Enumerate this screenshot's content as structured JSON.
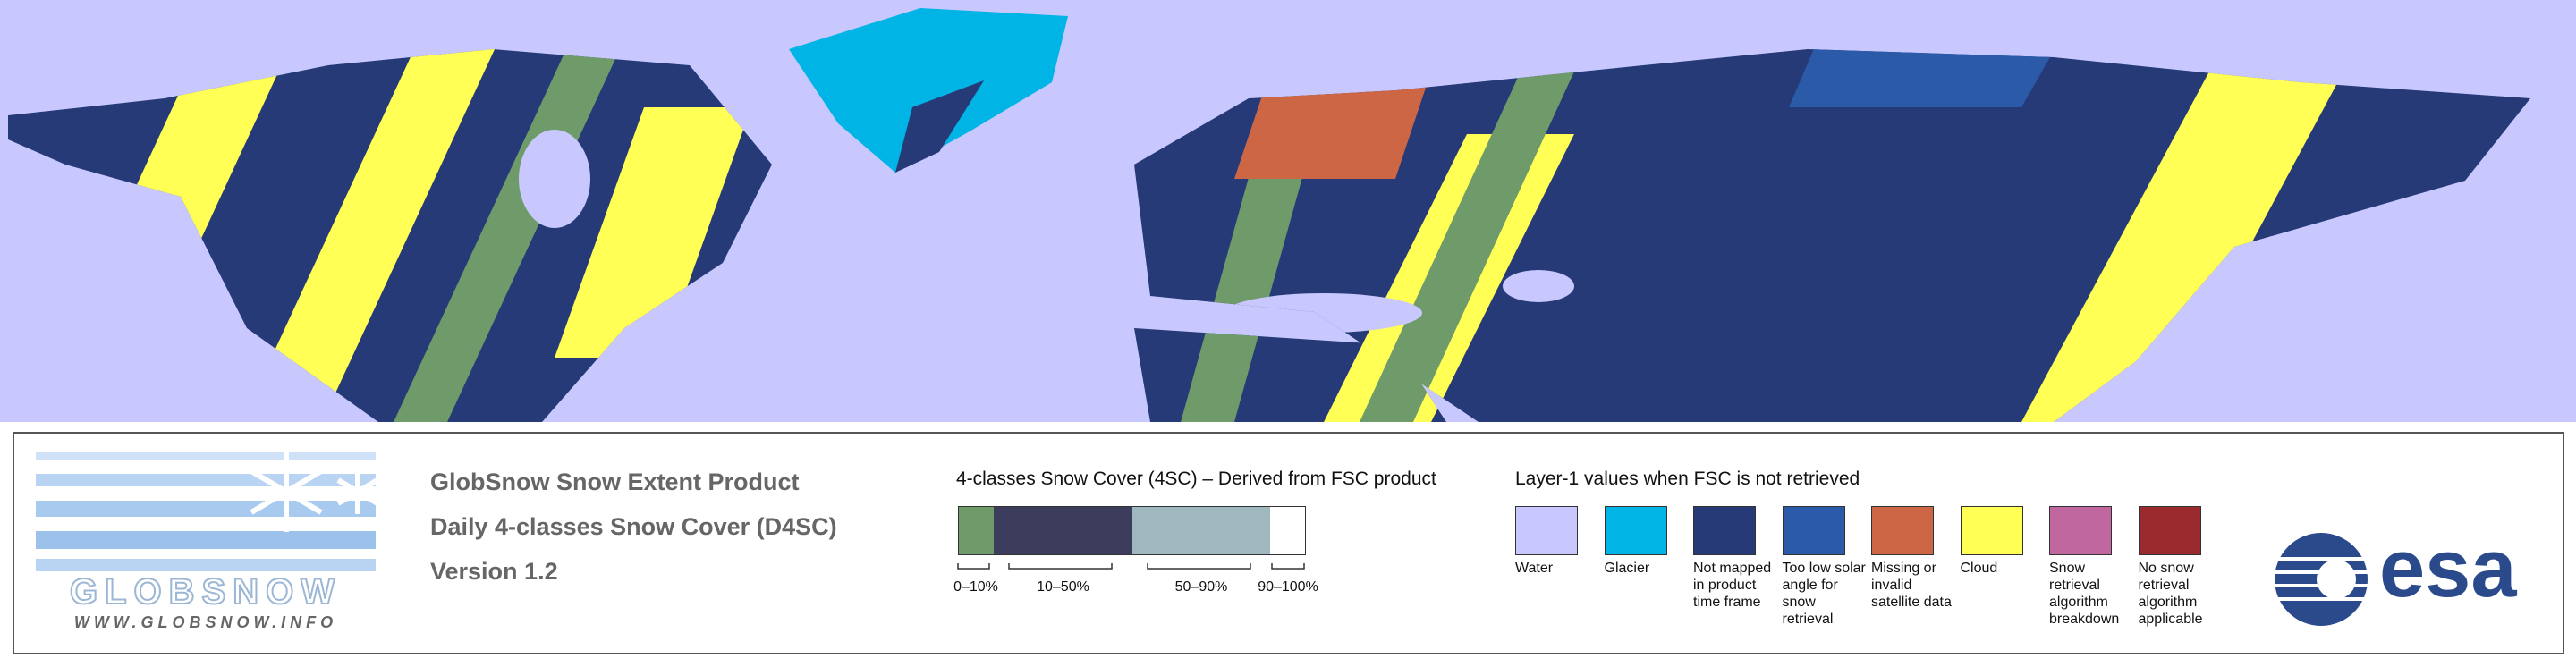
{
  "product": {
    "lines": [
      "GlobSnow Snow Extent Product",
      "Daily 4-classes Snow Cover (D4SC)",
      "Version 1.2"
    ]
  },
  "logo": {
    "name": "GLOBSNOW",
    "url": "WWW.GLOBSNOW.INFO"
  },
  "snow_cover": {
    "title": "4-classes Snow Cover (4SC) – Derived from FSC product",
    "classes": [
      {
        "label": "0–10%",
        "color": "#6f9a6a"
      },
      {
        "label": "10–50%",
        "color": "#3c3c5c"
      },
      {
        "label": "50–90%",
        "color": "#9fb8bd"
      },
      {
        "label": "90–100%",
        "color": "#ffffff"
      }
    ]
  },
  "layer1": {
    "title": "Layer-1 values when FSC is not retrieved",
    "classes": [
      {
        "label": "Water",
        "color": "#c8c8ff"
      },
      {
        "label": "Glacier",
        "color": "#00b4e6"
      },
      {
        "label": "Not mapped in product time frame",
        "color": "#263a78"
      },
      {
        "label": "Too low solar angle for snow retrieval",
        "color": "#2a5aa8"
      },
      {
        "label": "Missing or invalid satellite data",
        "color": "#cc6644"
      },
      {
        "label": "Cloud",
        "color": "#ffff55"
      },
      {
        "label": "Snow retrieval algorithm breakdown",
        "color": "#c0679f"
      },
      {
        "label": "No snow retrieval algorithm applicable",
        "color": "#9a2a2e"
      }
    ]
  },
  "agency": "esa"
}
